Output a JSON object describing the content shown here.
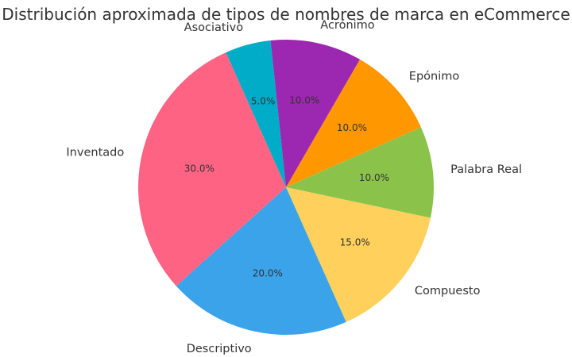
{
  "chart_data": {
    "type": "pie",
    "title": "Distribución aproximada de tipos de nombres de marca en eCommerce",
    "start_angle_deg": 60,
    "direction": "clockwise",
    "slices": [
      {
        "label": "Epónimo",
        "value": 10.0,
        "pct_label": "10.0%",
        "color": "#FF9800"
      },
      {
        "label": "Palabra Real",
        "value": 10.0,
        "pct_label": "10.0%",
        "color": "#8BC34A"
      },
      {
        "label": "Compuesto",
        "value": 15.0,
        "pct_label": "15.0%",
        "color": "#FFD05C"
      },
      {
        "label": "Descriptivo",
        "value": 20.0,
        "pct_label": "20.0%",
        "color": "#3AA3EA"
      },
      {
        "label": "Inventado",
        "value": 30.0,
        "pct_label": "30.0%",
        "color": "#FF6383"
      },
      {
        "label": "Asociativo",
        "value": 5.0,
        "pct_label": "5.0%",
        "color": "#00ACC8"
      },
      {
        "label": "Acrónimo",
        "value": 10.0,
        "pct_label": "10.0%",
        "color": "#9C27B0"
      }
    ]
  }
}
